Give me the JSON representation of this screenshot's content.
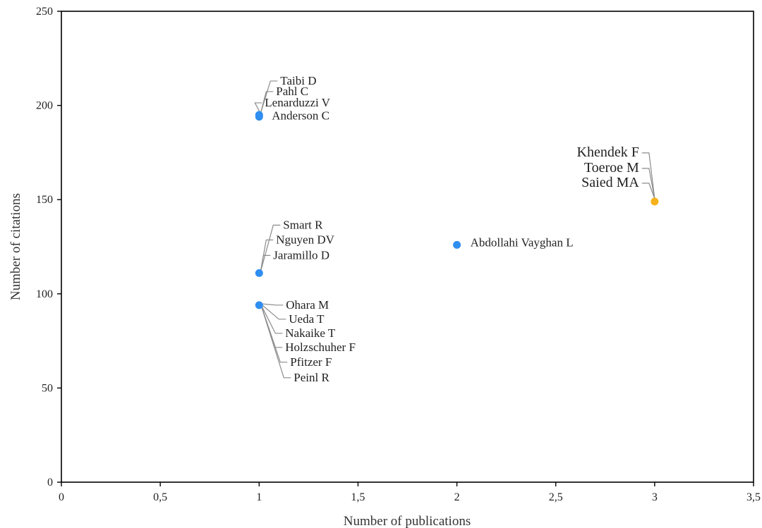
{
  "chart_data": {
    "type": "scatter",
    "title": "",
    "xlabel": "Number of publications",
    "ylabel": "Number of citations",
    "xlim": [
      0,
      3.5
    ],
    "ylim": [
      0,
      250
    ],
    "xticks": [
      "0",
      "0,5",
      "1",
      "1,5",
      "2",
      "2,5",
      "3",
      "3,5"
    ],
    "xtick_values": [
      0,
      0.5,
      1,
      1.5,
      2,
      2.5,
      3,
      3.5
    ],
    "yticks": [
      "0",
      "50",
      "100",
      "150",
      "200",
      "250"
    ],
    "ytick_values": [
      0,
      50,
      100,
      150,
      200,
      250
    ],
    "grid": false,
    "points": [
      {
        "x": 1,
        "y": 195,
        "color": "#2f8ef0",
        "labels": [
          "Taibi D",
          "Pahl C",
          "Lenarduzzi V"
        ]
      },
      {
        "x": 1,
        "y": 194,
        "color": "#2f8ef0",
        "labels": [
          "Anderson C"
        ]
      },
      {
        "x": 1,
        "y": 111,
        "color": "#2f8ef0",
        "labels": [
          "Smart R",
          "Nguyen DV",
          "Jaramillo D"
        ]
      },
      {
        "x": 1,
        "y": 94,
        "color": "#2f8ef0",
        "labels": [
          "Ohara M",
          "Ueda T",
          "Nakaike T",
          "Holzschuher F",
          "Pfitzer F",
          "Peinl R"
        ]
      },
      {
        "x": 2,
        "y": 126,
        "color": "#2f8ef0",
        "labels": [
          "Abdollahi Vayghan L"
        ]
      },
      {
        "x": 3,
        "y": 149,
        "color": "#f5b21b",
        "labels": [
          "Khendek F",
          "Toeroe M",
          "Saied MA"
        ]
      }
    ]
  }
}
